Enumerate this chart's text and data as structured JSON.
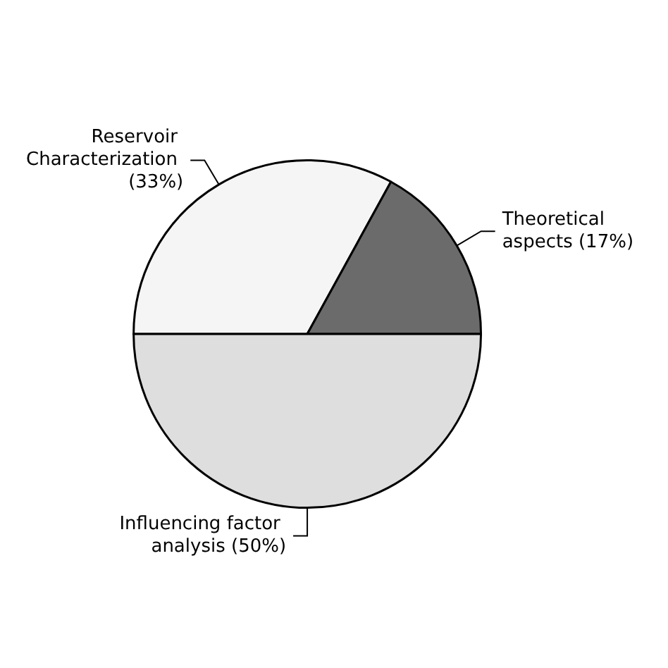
{
  "chart_data": {
    "type": "pie",
    "categories": [
      "Reservoir Characterization (33%)",
      "Theoretical aspects (17%)",
      "Influencing factor analysis (50%)"
    ],
    "values": [
      33,
      17,
      50
    ],
    "colors": [
      "#f5f5f5",
      "#6b6b6b",
      "#dedede"
    ],
    "legend": false
  }
}
